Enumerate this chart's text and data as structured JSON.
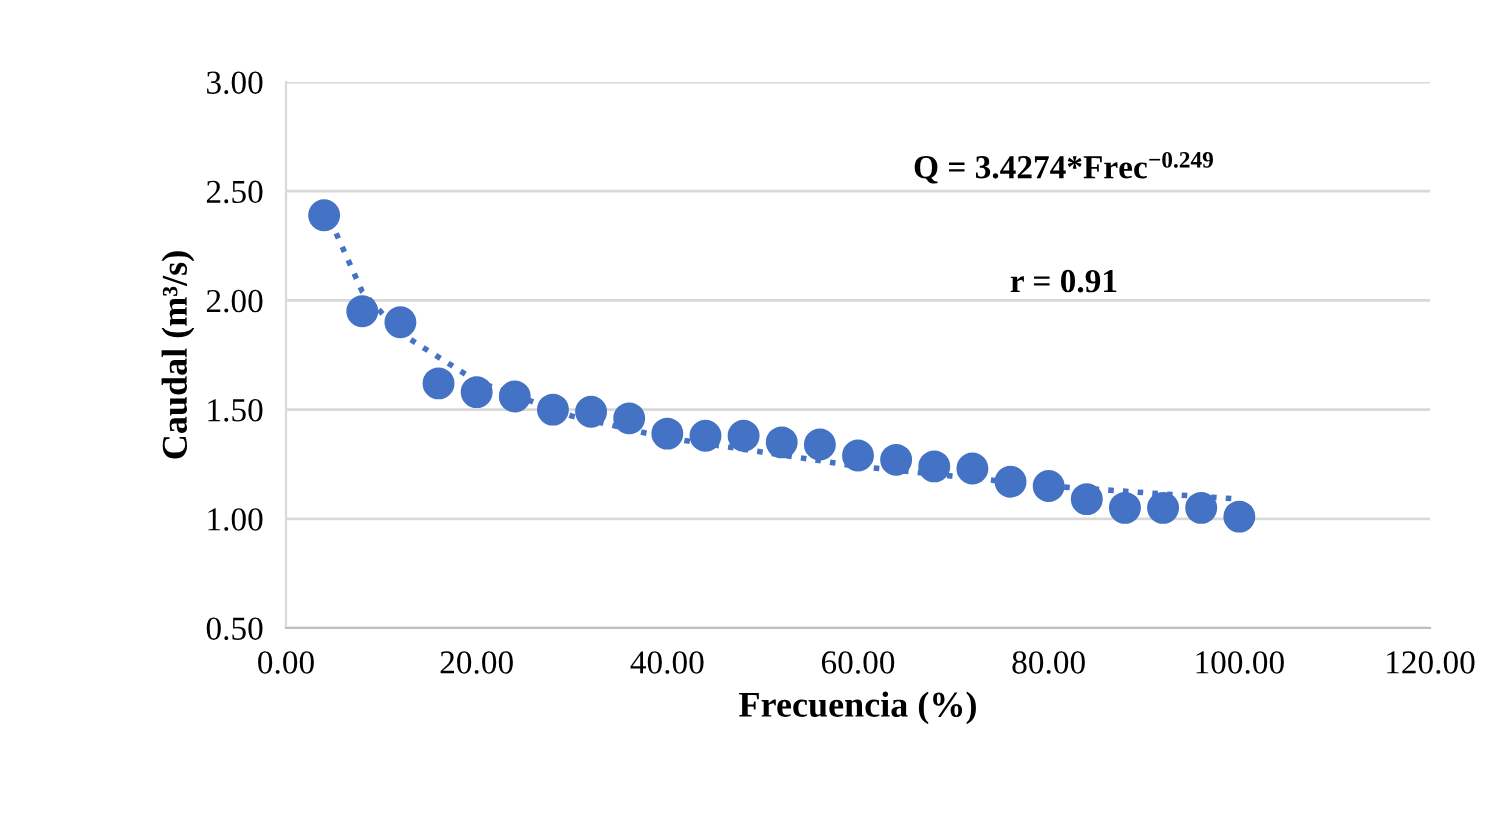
{
  "chart_data": {
    "type": "scatter",
    "xlabel": "Frecuencia (%)",
    "ylabel": "Caudal (m³/s)",
    "xlim": [
      0,
      120
    ],
    "ylim": [
      0.5,
      3.0
    ],
    "xticks": [
      {
        "value": 0,
        "label": "0.00"
      },
      {
        "value": 20,
        "label": "20.00"
      },
      {
        "value": 40,
        "label": "40.00"
      },
      {
        "value": 60,
        "label": "60.00"
      },
      {
        "value": 80,
        "label": "80.00"
      },
      {
        "value": 100,
        "label": "100.00"
      },
      {
        "value": 120,
        "label": "120.00"
      }
    ],
    "yticks": [
      {
        "value": 0.5,
        "label": "0.50"
      },
      {
        "value": 1.0,
        "label": "1.00"
      },
      {
        "value": 1.5,
        "label": "1.50"
      },
      {
        "value": 2.0,
        "label": "2.00"
      },
      {
        "value": 2.5,
        "label": "2.50"
      },
      {
        "value": 3.0,
        "label": "3.00"
      }
    ],
    "grid": "y",
    "legend": false,
    "series": [
      {
        "color": "#4472c4",
        "marker": "circle",
        "x": [
          4,
          8,
          12,
          16,
          20,
          24,
          28,
          32,
          36,
          40,
          44,
          48,
          52,
          56,
          60,
          64,
          68,
          72,
          76,
          80,
          84,
          88,
          92,
          96,
          100
        ],
        "values": [
          2.39,
          1.95,
          1.9,
          1.62,
          1.58,
          1.56,
          1.5,
          1.49,
          1.46,
          1.39,
          1.38,
          1.38,
          1.35,
          1.34,
          1.29,
          1.27,
          1.24,
          1.23,
          1.17,
          1.15,
          1.09,
          1.05,
          1.05,
          1.05,
          1.01
        ]
      },
      {
        "type": "line",
        "color": "#4472c4",
        "marker": "none",
        "line_style": "dotted",
        "x": [
          4,
          8,
          12,
          20,
          30,
          40,
          60,
          80,
          100
        ],
        "values": [
          2.43,
          2.04,
          1.85,
          1.63,
          1.47,
          1.37,
          1.24,
          1.15,
          1.09
        ]
      }
    ],
    "annotations": [
      "Q = 3.4274*Frec$^{−0.249}$",
      "r = 0.91"
    ]
  }
}
